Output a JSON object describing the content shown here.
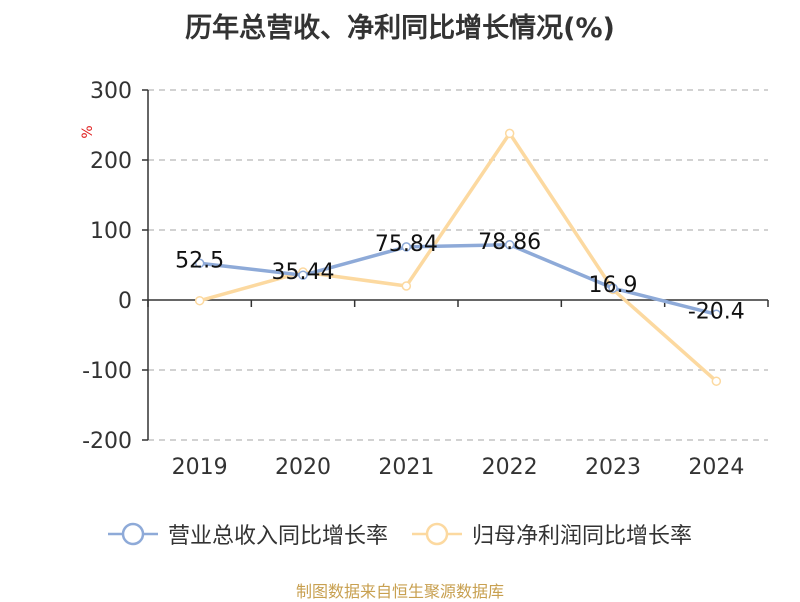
{
  "chart_data": {
    "type": "line",
    "title": "历年总营收、净利同比增长情况(%)",
    "y_unit": "%",
    "categories": [
      "2019",
      "2020",
      "2021",
      "2022",
      "2023",
      "2024"
    ],
    "ylim": [
      -200,
      300
    ],
    "y_ticks": [
      300,
      200,
      100,
      0,
      -100,
      -200
    ],
    "grid": true,
    "legend_position": "bottom",
    "series": [
      {
        "name": "营业总收入同比增长率",
        "color": "#8eaad8",
        "values": [
          52.5,
          35.44,
          75.84,
          78.86,
          16.9,
          -20.4
        ],
        "labels": [
          "52.5",
          "35.44",
          "75.84",
          "78.86",
          "16.9",
          "-20.4"
        ]
      },
      {
        "name": "归母净利润同比增长率",
        "color": "#fcd9a0",
        "values": [
          -1,
          40,
          20,
          238,
          15,
          -116
        ],
        "labels": []
      }
    ]
  },
  "source_note": "制图数据来自恒生聚源数据库"
}
